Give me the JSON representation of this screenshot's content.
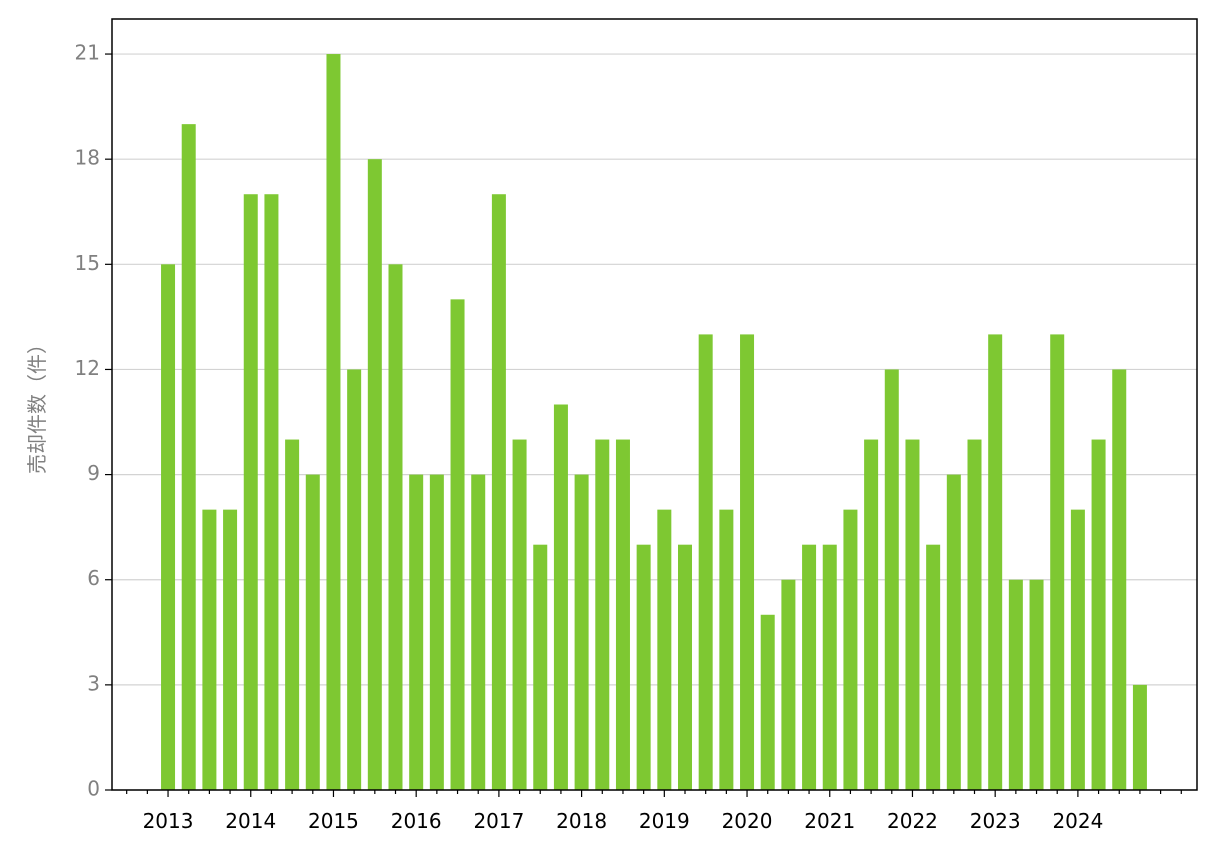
{
  "chart_data": {
    "type": "bar",
    "y_label": "売却件数（件）",
    "categories": [
      "2013",
      null,
      null,
      null,
      "2014",
      null,
      null,
      null,
      "2015",
      null,
      null,
      null,
      "2016",
      null,
      null,
      null,
      "2017",
      null,
      null,
      null,
      "2018",
      null,
      null,
      null,
      "2019",
      null,
      null,
      null,
      "2020",
      null,
      null,
      null,
      "2021",
      null,
      null,
      null,
      "2022",
      null,
      null,
      null,
      "2023",
      null,
      null,
      null,
      "2024",
      null,
      null,
      null
    ],
    "values": [
      15,
      19,
      8,
      8,
      17,
      17,
      10,
      9,
      21,
      12,
      18,
      15,
      9,
      9,
      14,
      9,
      17,
      10,
      7,
      11,
      9,
      10,
      10,
      7,
      8,
      7,
      13,
      8,
      13,
      5,
      6,
      7,
      7,
      8,
      10,
      12,
      10,
      7,
      9,
      10,
      13,
      6,
      6,
      13,
      8,
      10,
      12,
      3
    ],
    "color": "#7ec832",
    "ylim": [
      0,
      22
    ],
    "yticks": [
      0,
      3,
      6,
      9,
      12,
      15,
      18,
      21
    ],
    "grid": true
  }
}
